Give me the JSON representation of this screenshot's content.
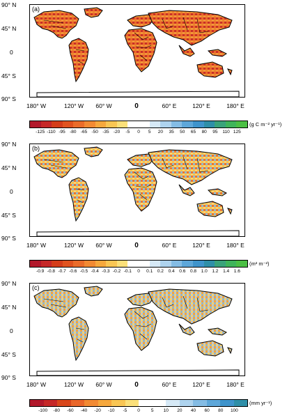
{
  "panels": [
    {
      "label": "(a)",
      "units": "(g C m⁻² yr⁻¹)",
      "ticks": [
        "-125",
        "-110",
        "-95",
        "-80",
        "-65",
        "-50",
        "-35",
        "-20",
        "-5",
        "0",
        "5",
        "20",
        "35",
        "50",
        "65",
        "80",
        "95",
        "110",
        "125"
      ],
      "colors": [
        "#b2182b",
        "#c62828",
        "#d43d1a",
        "#e0531f",
        "#ea6c2a",
        "#f28a33",
        "#f6a83d",
        "#f9c654",
        "#fbe07a",
        "#ffffff",
        "#ffffff",
        "#d6e9f6",
        "#aed3ee",
        "#84bce4",
        "#5ea7d9",
        "#3f94cc",
        "#2f8fa8",
        "#3aa37a",
        "#3fb45a",
        "#4bbf44"
      ]
    },
    {
      "label": "(b)",
      "units": "(m² m⁻²)",
      "ticks": [
        "-0.9",
        "-0.8",
        "-0.7",
        "-0.6",
        "-0.5",
        "-0.4",
        "-0.3",
        "-0.2",
        "-0.1",
        "0",
        "0.1",
        "0.2",
        "0.4",
        "0.6",
        "0.8",
        "1.0",
        "1.2",
        "1.4",
        "1.6"
      ],
      "colors": [
        "#b2182b",
        "#c62828",
        "#d43d1a",
        "#e0531f",
        "#ea6c2a",
        "#f28a33",
        "#f6a83d",
        "#f9c654",
        "#fbe07a",
        "#ffffff",
        "#ffffff",
        "#d6e9f6",
        "#aed3ee",
        "#84bce4",
        "#5ea7d9",
        "#3f94cc",
        "#2f8fa8",
        "#3aa37a",
        "#3fb45a",
        "#4bbf44"
      ]
    },
    {
      "label": "(c)",
      "units": "(mm yr⁻¹)",
      "ticks": [
        "-100",
        "-80",
        "-60",
        "-40",
        "-20",
        "-10",
        "-5",
        "0",
        "5",
        "10",
        "20",
        "40",
        "60",
        "80",
        "100"
      ],
      "colors": [
        "#b2182b",
        "#c62828",
        "#d9471c",
        "#e9662a",
        "#f28a33",
        "#f6a83d",
        "#f9c654",
        "#fbe07a",
        "#ffffff",
        "#ffffff",
        "#d6e9f6",
        "#aed3ee",
        "#84bce4",
        "#5ea7d9",
        "#3f94cc",
        "#2f8fa8"
      ]
    }
  ],
  "lat_labels": [
    "90° N",
    "45° N",
    "0",
    "45° S",
    "90° S"
  ],
  "lon_labels": [
    "180° W",
    "120° W",
    "60° W",
    "0",
    "60° E",
    "120° E",
    "180° E"
  ]
}
